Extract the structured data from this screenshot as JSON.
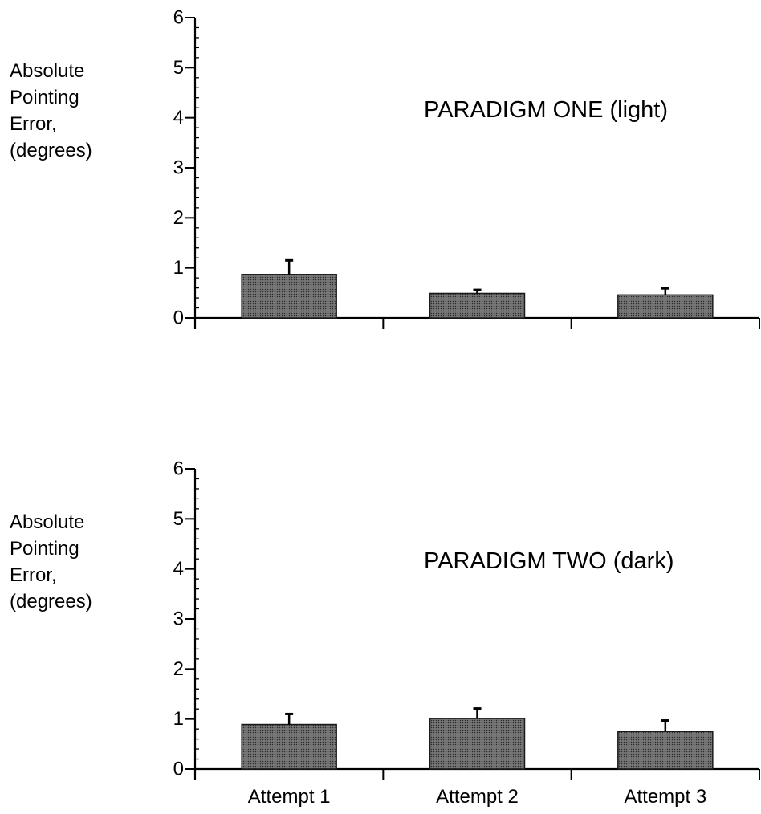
{
  "chart_data": [
    {
      "type": "bar",
      "title": "PARADIGM ONE (light)",
      "ylabel_lines": [
        "Absolute",
        "Pointing",
        "Error,",
        "(degrees)"
      ],
      "xlabel": "",
      "categories": [
        "Attempt 1",
        "Attempt 2",
        "Attempt 3"
      ],
      "show_category_labels": false,
      "values": [
        0.87,
        0.49,
        0.46
      ],
      "errors": [
        0.28,
        0.07,
        0.13
      ],
      "ylim": [
        0,
        6
      ],
      "yticks": [
        "0",
        "1",
        "2",
        "3",
        "4",
        "5",
        "6"
      ],
      "grid": false,
      "bar_color": "#555555"
    },
    {
      "type": "bar",
      "title": "PARADIGM TWO (dark)",
      "ylabel_lines": [
        "Absolute",
        "Pointing",
        "Error,",
        "(degrees)"
      ],
      "xlabel": "",
      "categories": [
        "Attempt 1",
        "Attempt 2",
        "Attempt 3"
      ],
      "show_category_labels": true,
      "values": [
        0.89,
        1.01,
        0.75
      ],
      "errors": [
        0.21,
        0.2,
        0.22
      ],
      "ylim": [
        0,
        6
      ],
      "yticks": [
        "0",
        "1",
        "2",
        "3",
        "4",
        "5",
        "6"
      ],
      "grid": false,
      "bar_color": "#555555"
    }
  ]
}
